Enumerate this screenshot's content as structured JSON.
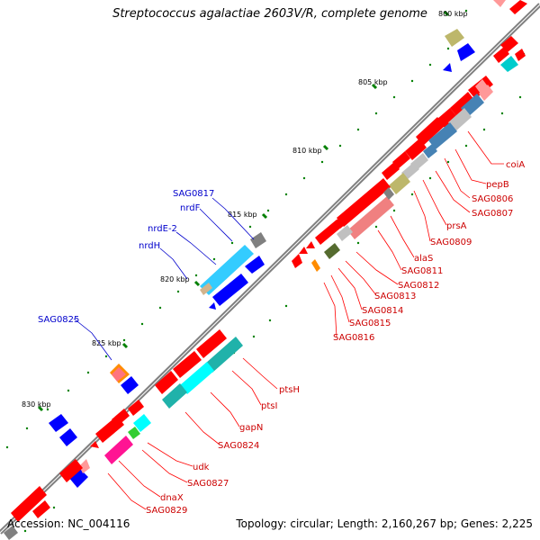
{
  "header": {
    "title": "Streptococcus agalactiae 2603V/R, complete genome"
  },
  "footer": {
    "accession": "Accession: NC_004116",
    "summary": "Topology: circular; Length: 2,160,267 bp; Genes: 2,225"
  },
  "colors": {
    "backbone": "#808080",
    "forward_gene": "#ff0000",
    "reverse_gene": "#0000ff",
    "tick": "#008000",
    "label_forward": "#cc0000",
    "label_reverse": "#0000cc"
  },
  "scale_labels": [
    "800 kbp",
    "805 kbp",
    "810 kbp",
    "815 kbp",
    "820 kbp",
    "825 kbp",
    "830 kbp"
  ],
  "forward_gene_labels": [
    "coiA",
    "pepB",
    "SAG0806",
    "SAG0807",
    "prsA",
    "SAG0809",
    "alaS",
    "SAG0811",
    "SAG0812",
    "SAG0813",
    "SAG0814",
    "SAG0815",
    "SAG0816",
    "ptsH",
    "ptsI",
    "gapN",
    "SAG0824",
    "udk",
    "SAG0827",
    "dnaX",
    "SAG0829"
  ],
  "reverse_gene_labels": [
    "SAG0817",
    "nrdF",
    "nrdE-2",
    "nrdH",
    "SAG0825"
  ]
}
